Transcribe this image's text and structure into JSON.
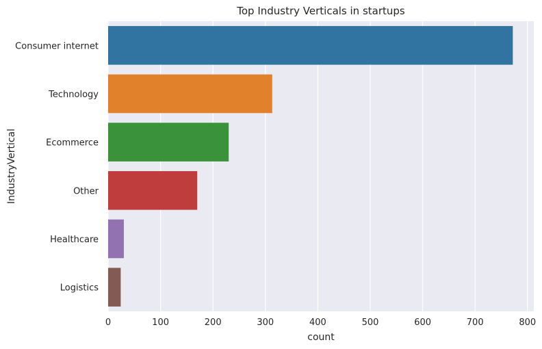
{
  "chart_data": {
    "type": "bar",
    "orientation": "horizontal",
    "title": "Top Industry Verticals in startups",
    "xlabel": "count",
    "ylabel": "IndustryVertical",
    "categories": [
      "Consumer internet",
      "Technology",
      "Ecommerce",
      "Other",
      "Healthcare",
      "Logistics"
    ],
    "values": [
      772,
      313,
      230,
      170,
      30,
      24
    ],
    "colors": [
      "#3274a1",
      "#e1812c",
      "#3a923a",
      "#c03d3e",
      "#9372b2",
      "#845b53"
    ],
    "xlim": [
      0,
      812
    ],
    "xticks": [
      0,
      100,
      200,
      300,
      400,
      500,
      600,
      700,
      800
    ],
    "grid": true,
    "background": "#eaeaf2"
  }
}
